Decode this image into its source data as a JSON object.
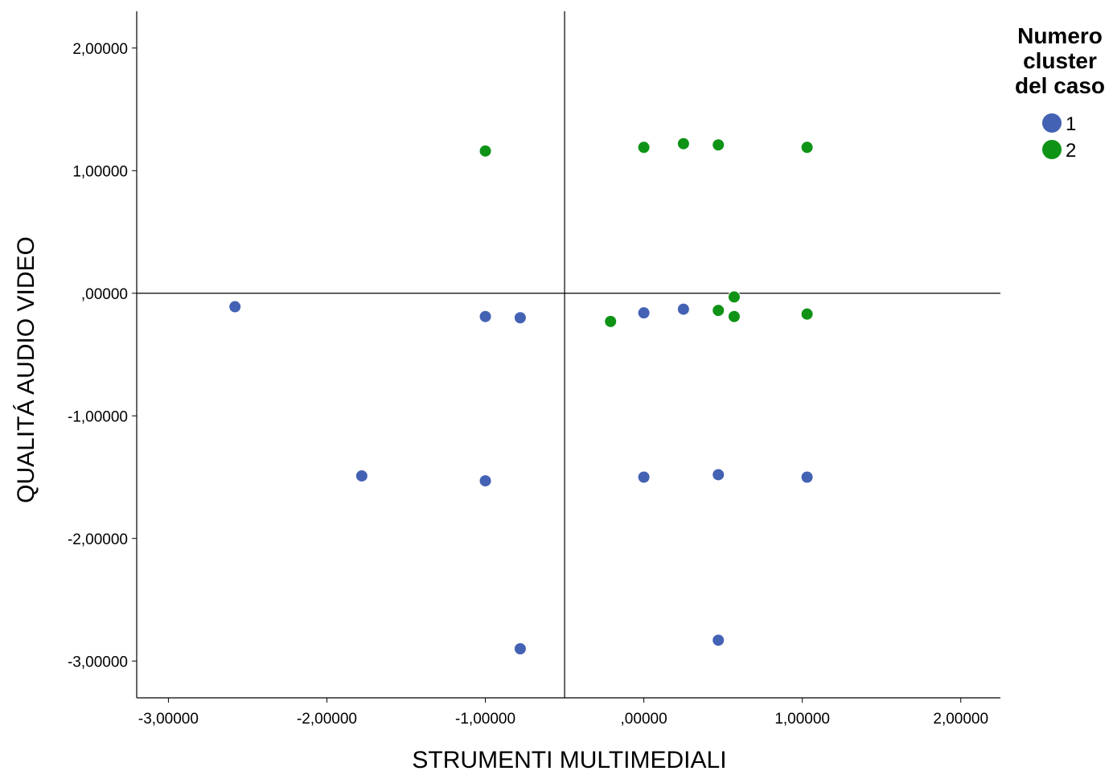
{
  "chart_data": {
    "type": "scatter",
    "title": "",
    "xlabel": "STRUMENTI MULTIMEDIALI",
    "ylabel": "QUALITÁ AUDIO VIDEO",
    "xlim": [
      -3.2,
      2.25
    ],
    "ylim": [
      -3.3,
      2.3
    ],
    "x_ticks": [
      -3,
      -2,
      -1,
      0,
      1,
      2
    ],
    "x_tick_labels": [
      "-3,00000",
      "-2,00000",
      "-1,00000",
      ",00000",
      "1,00000",
      "2,00000"
    ],
    "y_ticks": [
      2,
      1,
      0,
      -1,
      -2,
      -3
    ],
    "y_tick_labels": [
      "2,00000",
      "1,00000",
      ",00000",
      "-1,00000",
      "-2,00000",
      "-3,00000"
    ],
    "reference_lines": {
      "x": -0.5,
      "y": 0.0
    },
    "grid": false,
    "legend": {
      "title_lines": [
        "Numero",
        "cluster",
        "del caso"
      ],
      "placement": "top-right"
    },
    "series": [
      {
        "name": "1",
        "color": "#4462b4",
        "points": [
          [
            -2.58,
            -0.11
          ],
          [
            -1.0,
            -0.19
          ],
          [
            -0.78,
            -0.2
          ],
          [
            -1.78,
            -1.49
          ],
          [
            -1.0,
            -1.53
          ],
          [
            -0.78,
            -2.9
          ],
          [
            0.0,
            -0.16
          ],
          [
            0.25,
            -0.13
          ],
          [
            0.0,
            -1.5
          ],
          [
            0.47,
            -1.48
          ],
          [
            1.03,
            -1.5
          ],
          [
            0.47,
            -2.83
          ]
        ]
      },
      {
        "name": "2",
        "color": "#0e9317",
        "points": [
          [
            -1.0,
            1.16
          ],
          [
            0.0,
            1.19
          ],
          [
            0.25,
            1.22
          ],
          [
            0.47,
            1.21
          ],
          [
            1.03,
            1.19
          ],
          [
            -0.21,
            -0.23
          ],
          [
            0.47,
            -0.14
          ],
          [
            0.57,
            -0.19
          ],
          [
            0.57,
            -0.03
          ],
          [
            1.03,
            -0.17
          ]
        ]
      }
    ]
  }
}
